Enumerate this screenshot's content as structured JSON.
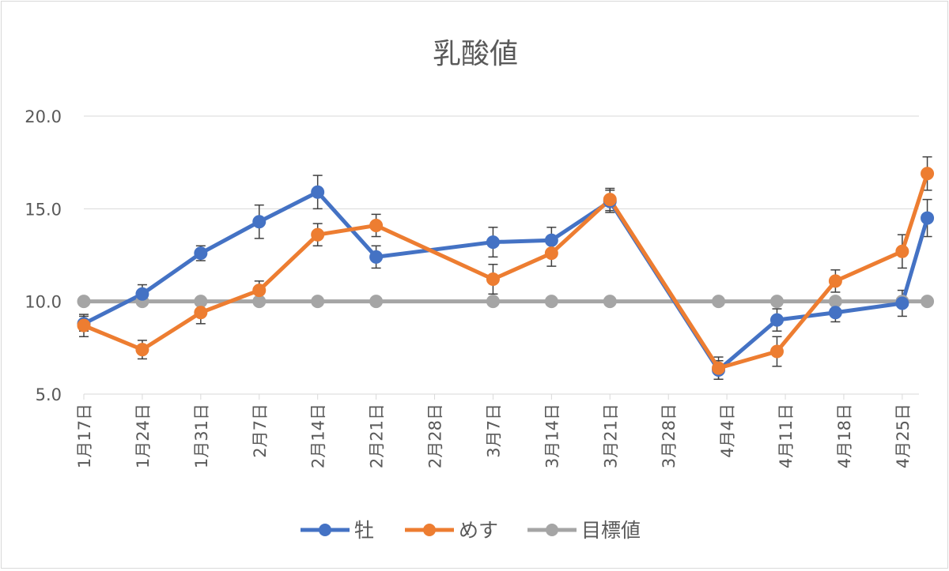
{
  "chart_data": {
    "type": "line",
    "title": "乳酸値",
    "xlabel": "",
    "ylabel": "",
    "ylim": [
      5.0,
      20.0
    ],
    "yticks": [
      5.0,
      10.0,
      15.0,
      20.0
    ],
    "xlim_days": [
      0,
      100
    ],
    "x_ticks": [
      {
        "day": 0,
        "label": "1月17日"
      },
      {
        "day": 7,
        "label": "1月24日"
      },
      {
        "day": 14,
        "label": "1月31日"
      },
      {
        "day": 21,
        "label": "2月7日"
      },
      {
        "day": 28,
        "label": "2月14日"
      },
      {
        "day": 35,
        "label": "2月21日"
      },
      {
        "day": 42,
        "label": "2月28日"
      },
      {
        "day": 49,
        "label": "3月7日"
      },
      {
        "day": 56,
        "label": "3月14日"
      },
      {
        "day": 63,
        "label": "3月21日"
      },
      {
        "day": 70,
        "label": "3月28日"
      },
      {
        "day": 77,
        "label": "4月4日"
      },
      {
        "day": 84,
        "label": "4月11日"
      },
      {
        "day": 91,
        "label": "4月18日"
      },
      {
        "day": 98,
        "label": "4月25日"
      }
    ],
    "legend_position": "bottom",
    "series": [
      {
        "name": "牡",
        "color": "#4472c4",
        "x_days": [
          0,
          7,
          14,
          21,
          28,
          35,
          49,
          56,
          63,
          76,
          83,
          90,
          98,
          101
        ],
        "values": [
          8.8,
          10.4,
          12.6,
          14.3,
          15.9,
          12.4,
          13.2,
          13.3,
          15.4,
          6.3,
          9.0,
          9.4,
          9.9,
          14.5
        ],
        "errors": [
          0.4,
          0.5,
          0.4,
          0.9,
          0.9,
          0.6,
          0.8,
          0.7,
          0.6,
          0.5,
          0.6,
          0.5,
          0.7,
          1.0
        ]
      },
      {
        "name": "めす",
        "color": "#ed7d31",
        "x_days": [
          0,
          7,
          14,
          21,
          28,
          35,
          49,
          56,
          63,
          76,
          83,
          90,
          98,
          101
        ],
        "values": [
          8.7,
          7.4,
          9.4,
          10.6,
          13.6,
          14.1,
          11.2,
          12.6,
          15.5,
          6.4,
          7.3,
          11.1,
          12.7,
          16.9
        ],
        "errors": [
          0.6,
          0.5,
          0.6,
          0.5,
          0.6,
          0.6,
          0.8,
          0.7,
          0.6,
          0.6,
          0.8,
          0.6,
          0.9,
          0.9
        ]
      },
      {
        "name": "目標値",
        "color": "#a5a5a5",
        "x_days": [
          0,
          7,
          14,
          21,
          28,
          35,
          49,
          56,
          63,
          76,
          83,
          90,
          98,
          101
        ],
        "values": [
          10,
          10,
          10,
          10,
          10,
          10,
          10,
          10,
          10,
          10,
          10,
          10,
          10,
          10
        ],
        "errors": []
      }
    ]
  }
}
